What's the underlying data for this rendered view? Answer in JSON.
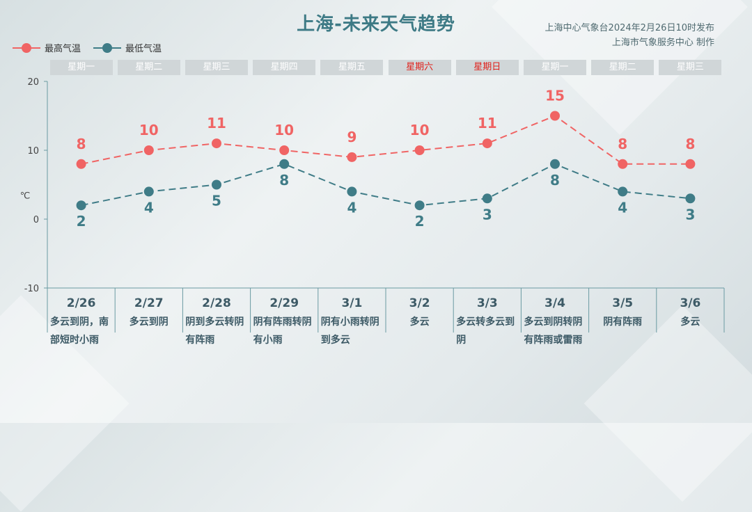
{
  "header": {
    "title": "上海-未来天气趋势",
    "issuer_line1": "上海中心气象台2024年2月26日10时发布",
    "issuer_line2": "上海市气象服务中心 制作"
  },
  "legend": {
    "high_label": "最高气温",
    "low_label": "最低气温"
  },
  "colors": {
    "high": "#f06464",
    "low": "#3f7c87",
    "axis": "#6a9aa2",
    "weekend_text": "#e0201a"
  },
  "weekdays": [
    {
      "label": "星期一",
      "weekend": false
    },
    {
      "label": "星期二",
      "weekend": false
    },
    {
      "label": "星期三",
      "weekend": false
    },
    {
      "label": "星期四",
      "weekend": false
    },
    {
      "label": "星期五",
      "weekend": false
    },
    {
      "label": "星期六",
      "weekend": true
    },
    {
      "label": "星期日",
      "weekend": true
    },
    {
      "label": "星期一",
      "weekend": false
    },
    {
      "label": "星期二",
      "weekend": false
    },
    {
      "label": "星期三",
      "weekend": false
    }
  ],
  "days": [
    {
      "date": "2/26",
      "weather": "多云到阴，南部短时小雨"
    },
    {
      "date": "2/27",
      "weather": "多云到阴"
    },
    {
      "date": "2/28",
      "weather": "阴到多云转阴有阵雨"
    },
    {
      "date": "2/29",
      "weather": "阴有阵雨转阴有小雨"
    },
    {
      "date": "3/1",
      "weather": "阴有小雨转阴到多云"
    },
    {
      "date": "3/2",
      "weather": "多云"
    },
    {
      "date": "3/3",
      "weather": "多云转多云到阴"
    },
    {
      "date": "3/4",
      "weather": "多云到阴转阴有阵雨或雷雨"
    },
    {
      "date": "3/5",
      "weather": "阴有阵雨"
    },
    {
      "date": "3/6",
      "weather": "多云"
    }
  ],
  "chart_data": {
    "type": "line",
    "x": [
      "2/26",
      "2/27",
      "2/28",
      "2/29",
      "3/1",
      "3/2",
      "3/3",
      "3/4",
      "3/5",
      "3/6"
    ],
    "series": [
      {
        "name": "最高气温",
        "values": [
          8,
          10,
          11,
          10,
          9,
          10,
          11,
          15,
          8,
          8
        ]
      },
      {
        "name": "最低气温",
        "values": [
          2,
          4,
          5,
          8,
          4,
          2,
          3,
          8,
          4,
          3
        ]
      }
    ],
    "ylabel": "℃",
    "ylim": [
      -10,
      20
    ],
    "yticks": [
      "-10",
      "0",
      "10",
      "20"
    ],
    "line_style": "dashed",
    "data_labels": true,
    "legend_position": "top-left",
    "grid": false
  }
}
